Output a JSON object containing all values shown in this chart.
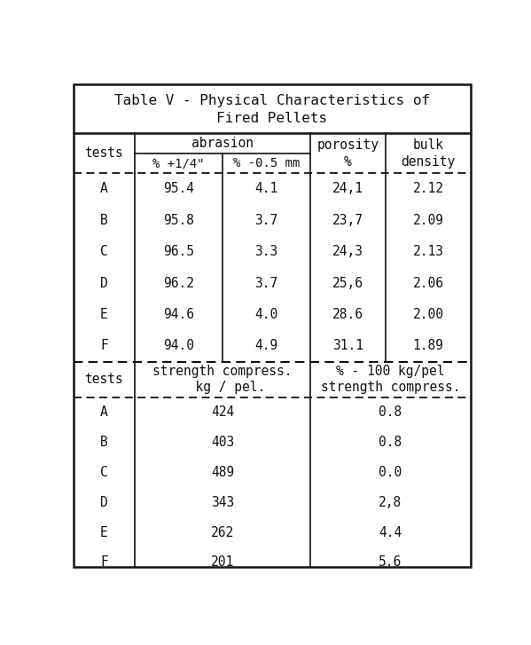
{
  "title_line1": "Table V - Physical Characteristics of",
  "title_line2": "Fired Pellets",
  "bg_color": "#ffffff",
  "border_color": "#111111",
  "top_rows": [
    [
      "A",
      "95.4",
      "4.1",
      "24,1",
      "2.12"
    ],
    [
      "B",
      "95.8",
      "3.7",
      "23,7",
      "2.09"
    ],
    [
      "C",
      "96.5",
      "3.3",
      "24,3",
      "2.13"
    ],
    [
      "D",
      "96.2",
      "3.7",
      "25,6",
      "2.06"
    ],
    [
      "E",
      "94.6",
      "4.0",
      "28.6",
      "2.00"
    ],
    [
      "F",
      "94.0",
      "4.9",
      "31.1",
      "1.89"
    ]
  ],
  "bottom_rows": [
    [
      "A",
      "424",
      "0.8"
    ],
    [
      "B",
      "403",
      "0.8"
    ],
    [
      "C",
      "489",
      "0.0"
    ],
    [
      "D",
      "343",
      "2,8"
    ],
    [
      "E",
      "262",
      "4.4"
    ],
    [
      "F",
      "201",
      "5.6"
    ]
  ],
  "font_size": 10.5,
  "title_font_size": 11.5
}
